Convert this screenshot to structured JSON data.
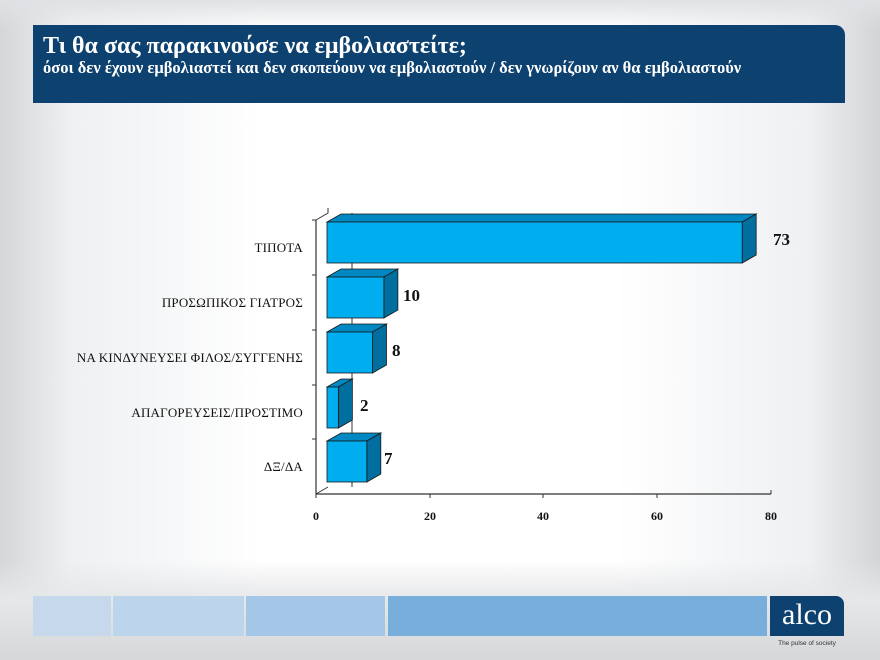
{
  "header": {
    "title": "Τι θα σας παρακινούσε να εμβολιαστείτε;",
    "subtitle": "όσοι δεν έχουν εμβολιαστεί και δεν σκοπεύουν να εμβολιαστούν / δεν γνωρίζουν αν θα εμβολιαστούν"
  },
  "chart_data": {
    "type": "bar",
    "orientation": "horizontal",
    "style": "3d",
    "title": "Τι θα σας παρακινούσε να εμβολιαστείτε;",
    "subtitle": "όσοι δεν έχουν εμβολιαστεί και δεν σκοπεύουν να εμβολιαστούν / δεν γνωρίζουν αν θα εμβολιαστούν",
    "categories": [
      "ΤΙΠΟΤΑ",
      "ΠΡΟΣΩΠΙΚΟΣ ΓΙΑΤΡΟΣ",
      "ΝΑ ΚΙΝΔΥΝΕΥΣΕΙ  ΦΙΛΟΣ/ΣΥΓΓΕΝΗΣ",
      "ΑΠΑΓΟΡΕΥΣΕΙΣ/ΠΡΟΣΤΙΜΟ",
      "ΔΞ/ΔΑ"
    ],
    "values": [
      73,
      10,
      8,
      2,
      7
    ],
    "value_labels": [
      "73",
      "10",
      "8",
      "2",
      "7"
    ],
    "xlabel": "",
    "ylabel": "",
    "xlim": [
      0,
      80
    ],
    "xticks": [
      "0",
      "20",
      "40",
      "60",
      "80"
    ],
    "grid": false,
    "legend": null,
    "bar_color": "#00aeef",
    "bar_side_color": "#006f9f",
    "bar_top_color": "#0088c2"
  },
  "footer": {
    "logo_text": "alco",
    "tagline": "The pulse of society",
    "stripe_colors": [
      "#c6d9ec",
      "#bcd4ec",
      "#a5c7e7",
      "#78aedb"
    ],
    "brand_color": "#0d416f"
  }
}
